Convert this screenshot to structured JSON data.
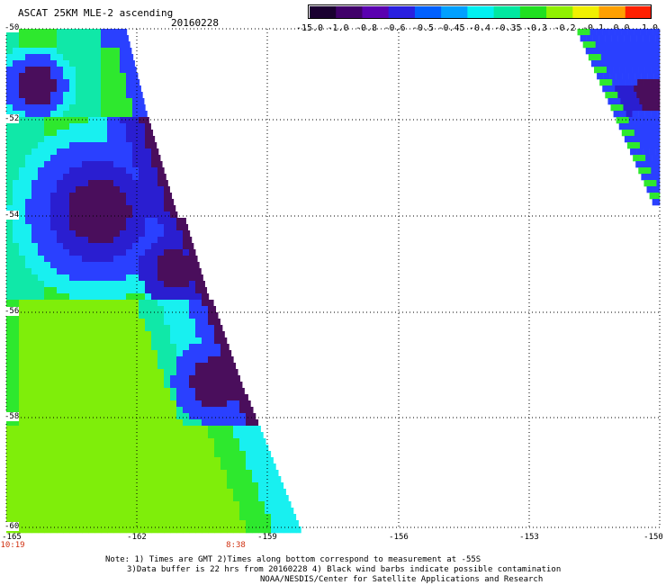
{
  "header": {
    "title": "ASCAT 25KM MLE-2 ascending",
    "date": "20160228"
  },
  "colorbar": {
    "labels": [
      "-15.0",
      "-1.0",
      "-0.8",
      "-0.6",
      "-0.5",
      "-0.45",
      "-0.4",
      "-0.35",
      "-0.3",
      "-0.2",
      "-0.1",
      "0.0",
      "1.0"
    ],
    "colors": [
      "#1a0030",
      "#40006a",
      "#5a00b0",
      "#2a20e0",
      "#0060ff",
      "#00a0ff",
      "#00f0f0",
      "#00e8a0",
      "#20e020",
      "#90f000",
      "#f0f000",
      "#ffa000",
      "#ff2000"
    ]
  },
  "map": {
    "lat_labels": [
      "-50",
      "-52",
      "-54",
      "-56",
      "-58",
      "-60"
    ],
    "lon_labels": [
      "-165",
      "-162",
      "-159",
      "-156",
      "-153",
      "-150"
    ],
    "time_labels": [
      "10:19",
      "8:38"
    ],
    "palette": {
      "deep": "#4a0e5c",
      "dark_blue": "#2a1ed0",
      "blue": "#2a40ff",
      "cyan": "#18f0f0",
      "aqua": "#10e8a8",
      "green": "#2ee82e",
      "lime": "#7fee0a"
    }
  },
  "notes": {
    "line1": "Note: 1) Times are GMT 2)Times along bottom correspond to measurement at -55S",
    "line2": "3)Data buffer is 22 hrs from 20160228 4) Black wind barbs indicate possible contamination",
    "line3": "NOAA/NESDIS/Center for Satellite Applications and Research"
  }
}
